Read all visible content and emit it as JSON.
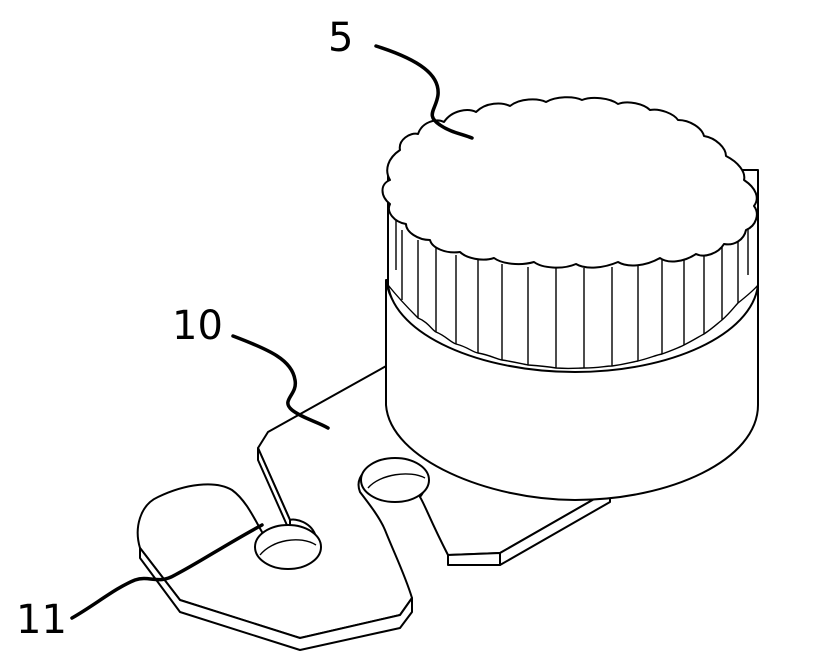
{
  "labels": {
    "knob": "5",
    "bracket": "10",
    "slot": "11"
  },
  "colors": {
    "line": "#000000",
    "background": "#ffffff"
  }
}
